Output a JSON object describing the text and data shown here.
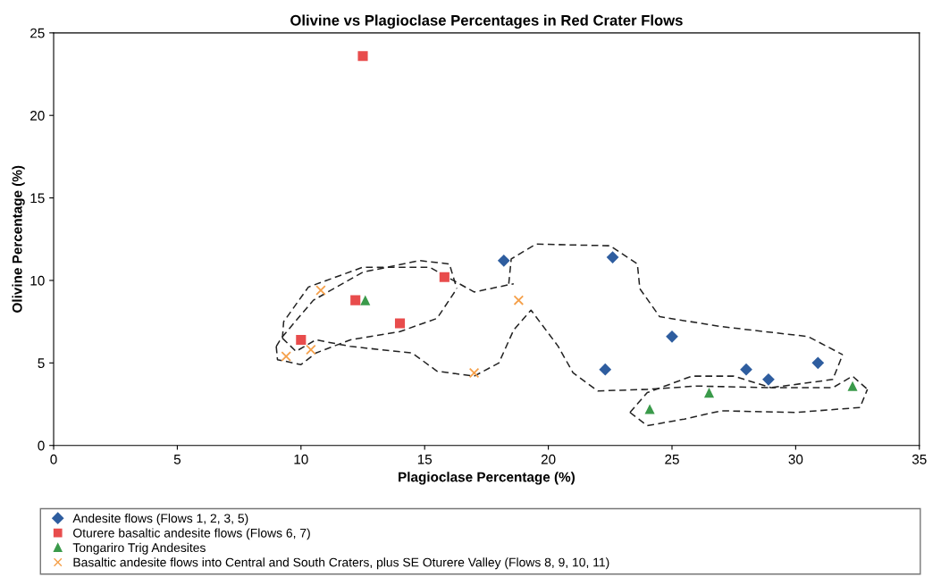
{
  "chart_data": {
    "type": "scatter",
    "title": "Olivine vs Plagioclase Percentages in Red Crater Flows",
    "xlabel": "Plagioclase Percentage (%)",
    "ylabel": "Olivine Percentage (%)",
    "xlim": [
      0,
      35
    ],
    "xticks": [
      0,
      5,
      10,
      15,
      20,
      25,
      30,
      35
    ],
    "ylim": [
      0,
      25
    ],
    "yticks": [
      0,
      5,
      10,
      15,
      20,
      25
    ],
    "grid": false,
    "legend": "bottom",
    "series": [
      {
        "name": "Andesite flows (Flows 1, 2, 3, 5)",
        "color": "#2e5d9f",
        "marker": "diamond",
        "x": [
          18.2,
          22.6,
          22.3,
          25.0,
          28.0,
          28.9,
          30.9
        ],
        "values": [
          11.2,
          11.4,
          4.6,
          6.6,
          4.6,
          4.0,
          5.0
        ]
      },
      {
        "name": "Oturere basaltic andesite flows (Flows 6, 7)",
        "color": "#e84c4c",
        "marker": "square",
        "x": [
          12.5,
          10.0,
          12.2,
          14.0,
          15.8
        ],
        "values": [
          23.6,
          6.4,
          8.8,
          7.4,
          10.2
        ]
      },
      {
        "name": "Tongariro Trig Andesites",
        "color": "#3a9a4a",
        "marker": "triangle",
        "x": [
          12.6,
          24.1,
          26.5,
          32.3
        ],
        "values": [
          8.8,
          2.2,
          3.2,
          3.6
        ]
      },
      {
        "name": "Basaltic andesite flows into Central and South Craters, plus SE Oturere Valley (Flows 8, 9, 10, 11)",
        "color": "#f5a04a",
        "marker": "cross",
        "x": [
          10.8,
          9.4,
          10.4,
          17.0,
          18.8
        ],
        "values": [
          9.4,
          5.4,
          5.8,
          4.4,
          8.8
        ]
      },
      {
        "type": "line",
        "color": "#222222",
        "line_style": "dashed",
        "marker": "none",
        "x": [
          9.0,
          9.2,
          10.5,
          12.5,
          14.8,
          16.0,
          16.3
        ],
        "values": [
          6.0,
          6.5,
          8.8,
          10.5,
          11.2,
          11.0,
          9.5
        ]
      },
      {
        "type": "line",
        "color": "#222222",
        "line_style": "dashed",
        "marker": "none",
        "x": [
          9.0,
          9.05,
          10.0,
          10.6,
          12.0,
          14.0,
          15.5,
          16.3
        ],
        "values": [
          6.0,
          5.2,
          4.9,
          5.6,
          6.4,
          6.9,
          7.7,
          9.5
        ]
      },
      {
        "type": "line",
        "color": "#222222",
        "line_style": "dashed",
        "marker": "none",
        "x": [
          9.25,
          9.3,
          10.3,
          12.5,
          15.2,
          17.0,
          18.6
        ],
        "values": [
          6.5,
          7.5,
          9.6,
          10.8,
          10.8,
          9.3,
          9.8
        ]
      },
      {
        "type": "line",
        "color": "#222222",
        "line_style": "dashed",
        "marker": "none",
        "x": [
          18.4,
          18.5,
          19.5,
          22.5,
          23.6,
          23.7
        ],
        "values": [
          9.8,
          11.3,
          12.2,
          12.1,
          11.0,
          9.5
        ]
      },
      {
        "type": "line",
        "color": "#222222",
        "line_style": "dashed",
        "marker": "none",
        "x": [
          23.7,
          24.5,
          27.0,
          30.5,
          31.9
        ],
        "values": [
          9.5,
          7.8,
          7.2,
          6.6,
          5.5
        ]
      },
      {
        "type": "line",
        "color": "#222222",
        "line_style": "dashed",
        "marker": "none",
        "x": [
          9.25,
          9.8,
          10.6,
          12.0,
          14.5,
          15.5,
          17.0,
          18.0,
          18.6,
          19.3,
          20.4,
          21.0,
          22.0,
          24.0,
          26.0,
          29.0,
          31.5,
          31.9
        ],
        "values": [
          6.5,
          5.7,
          6.4,
          6.0,
          5.6,
          4.5,
          4.2,
          5.0,
          7.0,
          8.2,
          6.0,
          4.4,
          3.3,
          3.4,
          3.6,
          3.5,
          4.0,
          5.5
        ]
      },
      {
        "type": "line",
        "color": "#222222",
        "line_style": "dashed",
        "marker": "none",
        "x": [
          23.3,
          24.0,
          25.8,
          27.5,
          29.0,
          31.5,
          32.3,
          32.9
        ],
        "values": [
          2.0,
          3.2,
          4.2,
          4.2,
          3.5,
          3.5,
          4.2,
          3.4
        ]
      },
      {
        "type": "line",
        "color": "#222222",
        "line_style": "dashed",
        "marker": "none",
        "x": [
          23.3,
          24.0,
          25.5,
          27.0,
          30.0,
          32.6,
          32.9
        ],
        "values": [
          2.0,
          1.2,
          1.6,
          2.1,
          2.0,
          2.3,
          3.4
        ]
      }
    ]
  }
}
